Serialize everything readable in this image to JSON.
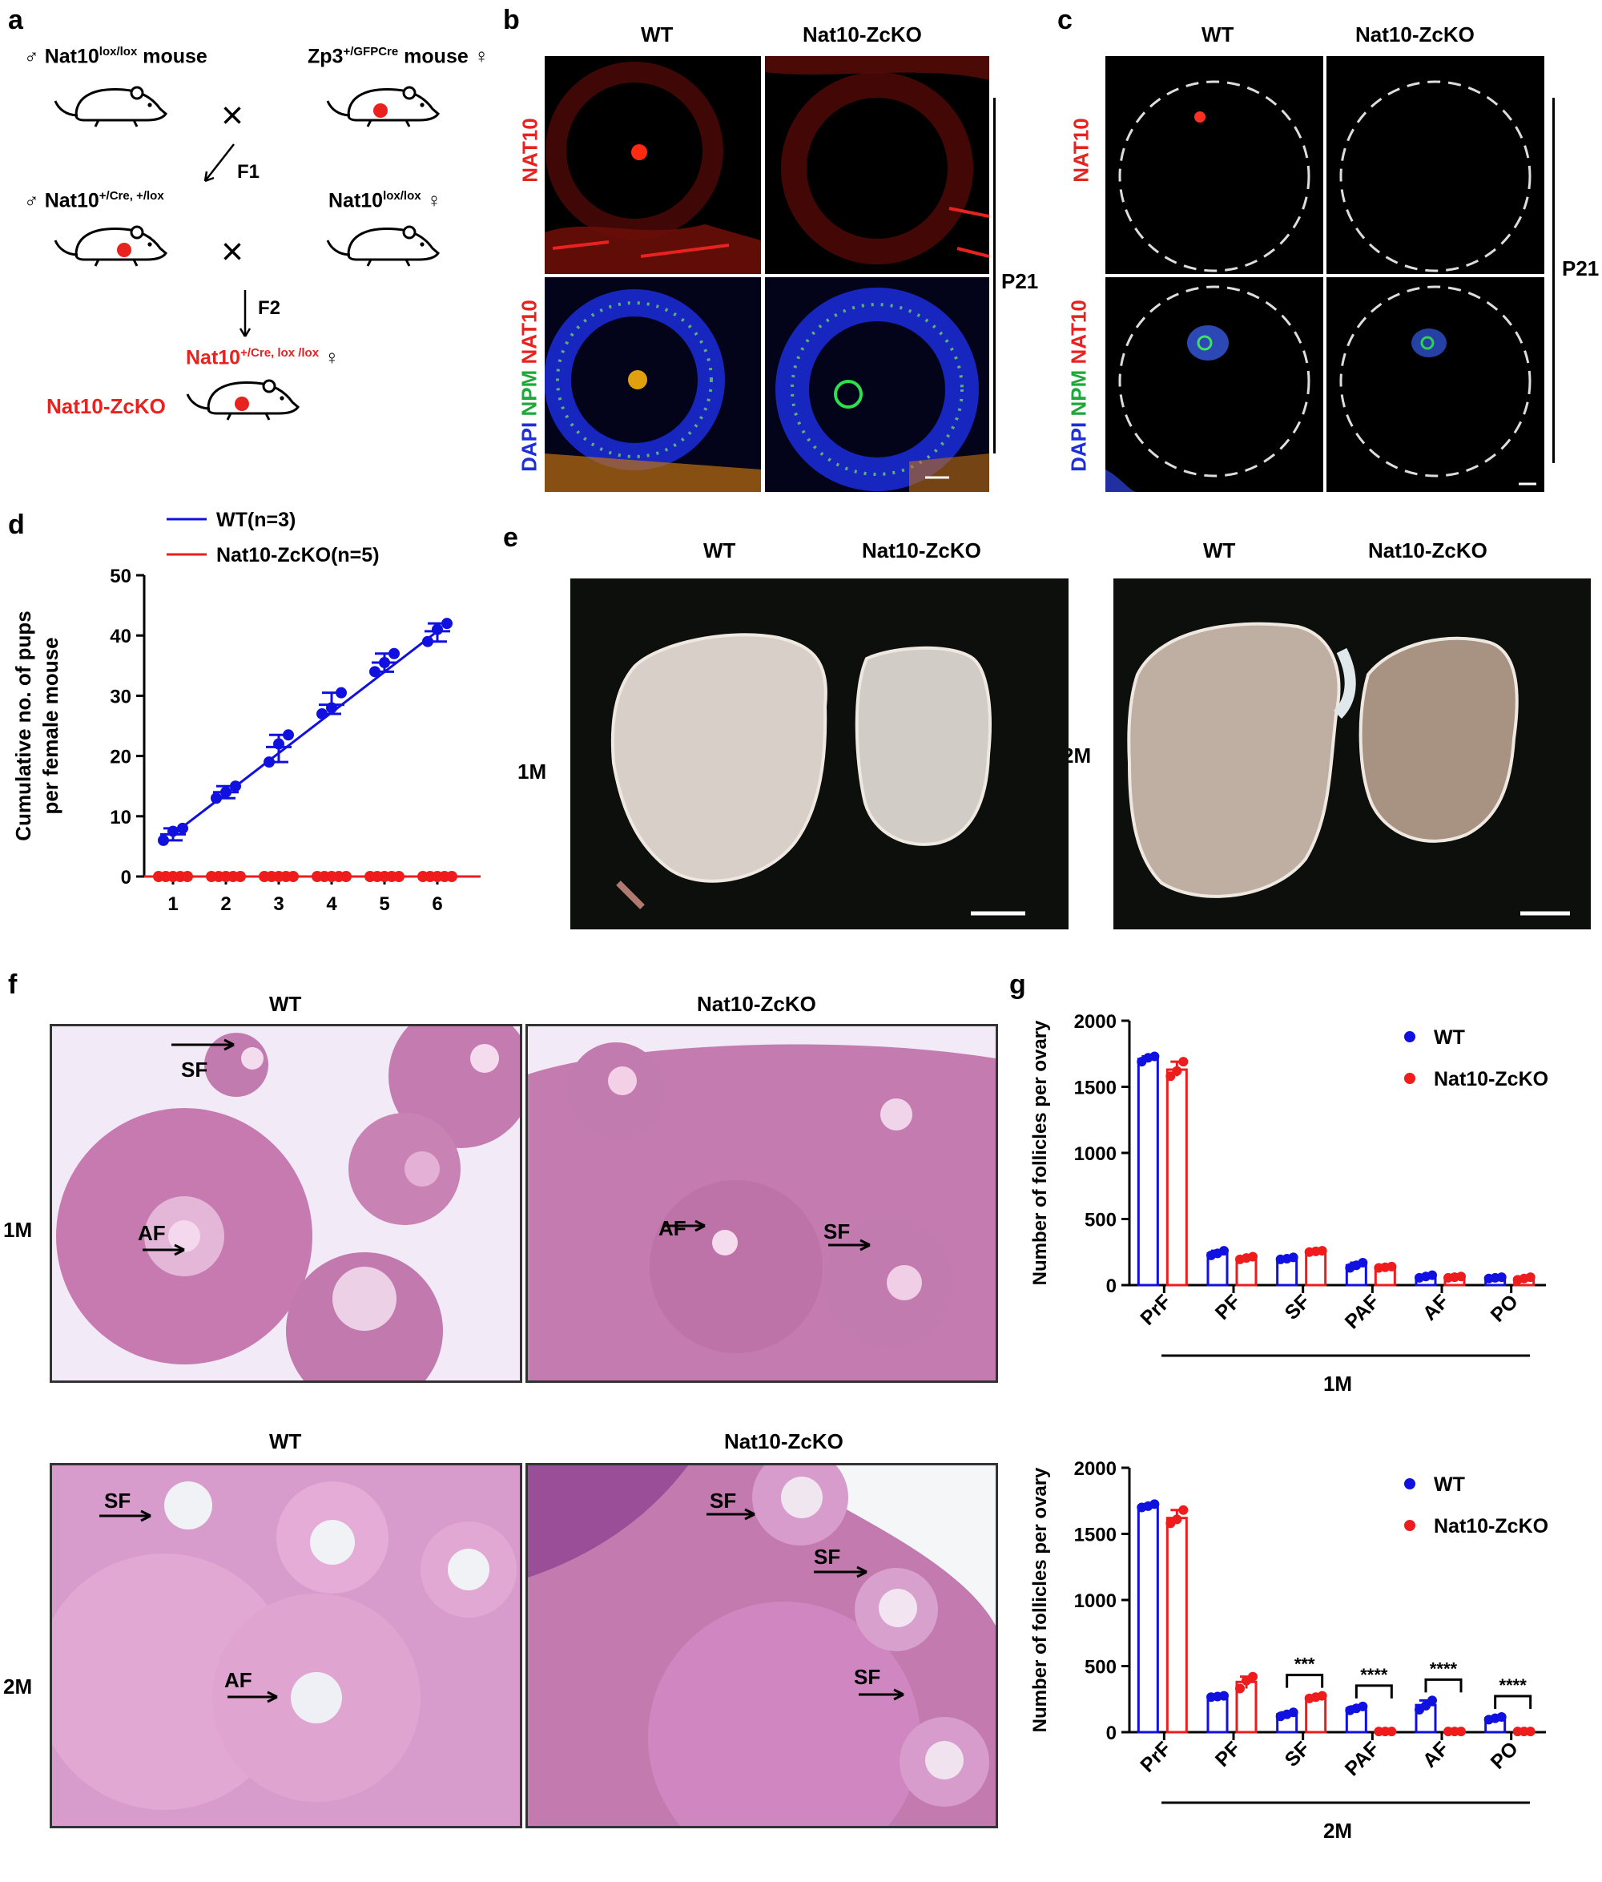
{
  "panel_letters": {
    "a": "a",
    "b": "b",
    "c": "c",
    "d": "d",
    "e": "e",
    "f": "f",
    "g": "g"
  },
  "panel_a": {
    "male_symbol": "♂",
    "female_symbol": "♀",
    "parent1": {
      "base": "Nat10",
      "sup": "lox/lox",
      "suffix": " mouse"
    },
    "parent2": {
      "base": "Zp3",
      "sup": "+/GFPCre",
      "suffix": " mouse"
    },
    "f1_label": "F1",
    "f1_male": {
      "base": "Nat10",
      "sup": "+/Cre, +/lox"
    },
    "f1_female": {
      "base": "Nat10",
      "sup": "lox/lox"
    },
    "f2_label": "F2",
    "f2_offspring": {
      "base": "Nat10",
      "sup": "+/Cre, lox /lox"
    },
    "ko_name": "Nat10-ZcKO",
    "cross_symbol": "×"
  },
  "panel_b": {
    "col_wt": "WT",
    "col_ko": "Nat10-ZcKO",
    "row1_label": "NAT10",
    "row2_labels": {
      "dapi": "DAPI",
      "npm": "NPM",
      "nat10": "NAT10"
    },
    "stage": "P21"
  },
  "panel_c": {
    "col_wt": "WT",
    "col_ko": "Nat10-ZcKO",
    "row1_label": "NAT10",
    "row2_labels": {
      "dapi": "DAPI",
      "npm": "NPM",
      "nat10": "NAT10"
    },
    "stage": "P21"
  },
  "panel_d": {
    "legend": [
      "WT(n=3)",
      "Nat10-ZcKO(n=5)"
    ],
    "ylabel_line1": "Cumulative no. of pups",
    "ylabel_line2": "per female mouse"
  },
  "panel_e": {
    "col_wt": "WT",
    "col_ko": "Nat10-ZcKO",
    "row_1m": "1M",
    "row_2m": "2M"
  },
  "panel_f": {
    "col_wt": "WT",
    "col_ko": "Nat10-ZcKO",
    "row_1m": "1M",
    "row_2m": "2M",
    "annotations": {
      "sf": "SF",
      "af": "AF"
    }
  },
  "colors": {
    "wt": "#1010e0",
    "ko": "#ee1c1c",
    "nat10_red": "#e8231f",
    "npm_green": "#1fa83a",
    "dapi_blue": "#1f2fd6"
  },
  "chart_data": [
    {
      "type": "line",
      "panel": "d",
      "x": [
        1,
        2,
        3,
        4,
        5,
        6
      ],
      "xticks": [
        "1",
        "2",
        "3",
        "4",
        "5",
        "6"
      ],
      "yticks": [
        "0",
        "10",
        "20",
        "30",
        "40",
        "50"
      ],
      "ylim": [
        0,
        50
      ],
      "ylabel": "Cumulative no. of pups per female mouse",
      "xlabel": "",
      "series": [
        {
          "name": "WT(n=3)",
          "values": [
            7,
            14,
            21.5,
            28.5,
            35.5,
            40.7
          ],
          "points": [
            [
              6,
              7.5,
              8
            ],
            [
              13,
              14,
              15
            ],
            [
              19,
              22,
              23.5
            ],
            [
              27,
              28,
              30.5
            ],
            [
              34,
              35.5,
              37
            ],
            [
              39,
              41,
              42
            ]
          ]
        },
        {
          "name": "Nat10-ZcKO(n=5)",
          "values": [
            0,
            0,
            0,
            0,
            0,
            0
          ],
          "points": [
            [
              0,
              0,
              0,
              0,
              0
            ],
            [
              0,
              0,
              0,
              0,
              0
            ],
            [
              0,
              0,
              0,
              0,
              0
            ],
            [
              0,
              0,
              0,
              0,
              0
            ],
            [
              0,
              0,
              0,
              0,
              0
            ],
            [
              0,
              0,
              0,
              0,
              0
            ]
          ]
        }
      ]
    },
    {
      "type": "bar",
      "panel": "g-1M",
      "categories": [
        "PrF",
        "PF",
        "SF",
        "PAF",
        "AF",
        "PO"
      ],
      "group_label": "1M",
      "ylabel": "Number of follicles per ovary",
      "ylim": [
        0,
        2000
      ],
      "yticks": [
        "0",
        "500",
        "1000",
        "1500",
        "2000"
      ],
      "series": [
        {
          "name": "WT",
          "values": [
            1710,
            240,
            200,
            150,
            65,
            55
          ],
          "points": [
            [
              1690,
              1720,
              1730
            ],
            [
              225,
              240,
              260
            ],
            [
              195,
              200,
              210
            ],
            [
              130,
              150,
              170
            ],
            [
              55,
              65,
              75
            ],
            [
              50,
              55,
              60
            ]
          ]
        },
        {
          "name": "Nat10-ZcKO",
          "values": [
            1630,
            205,
            255,
            135,
            60,
            50
          ],
          "points": [
            [
              1580,
              1620,
              1690
            ],
            [
              195,
              205,
              215
            ],
            [
              250,
              255,
              260
            ],
            [
              130,
              135,
              140
            ],
            [
              55,
              60,
              65
            ],
            [
              40,
              50,
              60
            ]
          ]
        }
      ],
      "significance": []
    },
    {
      "type": "bar",
      "panel": "g-2M",
      "categories": [
        "PrF",
        "PF",
        "SF",
        "PAF",
        "AF",
        "PO"
      ],
      "group_label": "2M",
      "ylabel": "Number of follicles per ovary",
      "ylim": [
        0,
        2000
      ],
      "yticks": [
        "0",
        "500",
        "1000",
        "1500",
        "2000"
      ],
      "series": [
        {
          "name": "WT",
          "values": [
            1710,
            270,
            135,
            180,
            205,
            105
          ],
          "points": [
            [
              1700,
              1710,
              1725
            ],
            [
              265,
              270,
              275
            ],
            [
              120,
              135,
              150
            ],
            [
              165,
              180,
              195
            ],
            [
              170,
              200,
              240
            ],
            [
              95,
              105,
              115
            ]
          ]
        },
        {
          "name": "Nat10-ZcKO",
          "values": [
            1620,
            380,
            265,
            5,
            5,
            5
          ],
          "points": [
            [
              1580,
              1610,
              1680
            ],
            [
              330,
              390,
              420
            ],
            [
              255,
              265,
              275
            ],
            [
              5,
              5,
              5
            ],
            [
              5,
              5,
              5
            ],
            [
              5,
              5,
              5
            ]
          ]
        }
      ],
      "significance": [
        {
          "category": "SF",
          "label": "***"
        },
        {
          "category": "PAF",
          "label": "****"
        },
        {
          "category": "AF",
          "label": "****"
        },
        {
          "category": "PO",
          "label": "****"
        }
      ]
    }
  ]
}
